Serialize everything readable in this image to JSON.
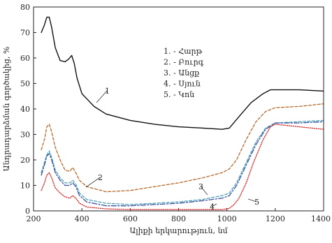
{
  "chart_data": {
    "type": "line",
    "xlabel": "Ալիքի երկարություն, նմ",
    "ylabel": "Անդրադարձման գործակից, %",
    "xlim": [
      200,
      1400
    ],
    "ylim": [
      0,
      80
    ],
    "x_ticks": [
      "200",
      "400",
      "600",
      "800",
      "1000",
      "1200",
      "1400"
    ],
    "y_ticks": [
      "0",
      "10",
      "20",
      "30",
      "40",
      "50",
      "60",
      "70",
      "80"
    ],
    "grid": false,
    "legend_position": "top-center",
    "legend": [
      "1. - Հարթ",
      "2. - Բուրգ",
      "3. - Անցք",
      "4. - Սյուն",
      "5. - Կոն"
    ],
    "series": [
      {
        "label": "1",
        "color": "#111111",
        "style": "solid",
        "x": [
          232,
          245,
          255,
          265,
          275,
          290,
          310,
          330,
          345,
          358,
          368,
          380,
          400,
          450,
          500,
          600,
          700,
          800,
          900,
          980,
          1010,
          1050,
          1100,
          1150,
          1180,
          1200,
          1300,
          1400
        ],
        "y": [
          70,
          73,
          76,
          76,
          72,
          64,
          59,
          58.5,
          59.5,
          61,
          58,
          52,
          46,
          41,
          38,
          35.5,
          34,
          33,
          32.5,
          32,
          32.5,
          37,
          42.5,
          46,
          47.5,
          47.5,
          47.5,
          47
        ]
      },
      {
        "label": "2",
        "color": "#b8692a",
        "style": "dashed",
        "x": [
          232,
          245,
          255,
          265,
          275,
          290,
          310,
          330,
          350,
          362,
          375,
          390,
          420,
          500,
          600,
          700,
          800,
          900,
          980,
          1010,
          1040,
          1080,
          1120,
          1160,
          1200,
          1300,
          1400
        ],
        "y": [
          24,
          28,
          33,
          34,
          31,
          25,
          20,
          16,
          15.5,
          17,
          15,
          12,
          9.5,
          7.5,
          8,
          9.5,
          11,
          13,
          15,
          16.5,
          20,
          28,
          35,
          39,
          40.5,
          41,
          42
        ]
      },
      {
        "label": "3",
        "color": "#4aa3b8",
        "style": "dashed",
        "x": [
          232,
          245,
          255,
          265,
          275,
          290,
          310,
          330,
          350,
          362,
          375,
          390,
          420,
          500,
          600,
          700,
          800,
          900,
          980,
          1010,
          1040,
          1080,
          1120,
          1160,
          1200,
          1300,
          1400
        ],
        "y": [
          15,
          19,
          22,
          23.5,
          21,
          16,
          13,
          11,
          11,
          12,
          10.5,
          7,
          4.5,
          3,
          2.5,
          3,
          3.5,
          4.5,
          6,
          7,
          11,
          19,
          27,
          32.5,
          34.5,
          35,
          35.5
        ]
      },
      {
        "label": "4",
        "color": "#3c4fa0",
        "style": "dashdot",
        "x": [
          232,
          245,
          255,
          265,
          275,
          290,
          310,
          330,
          350,
          362,
          375,
          390,
          420,
          500,
          600,
          700,
          800,
          900,
          980,
          1010,
          1040,
          1080,
          1120,
          1160,
          1200,
          1300,
          1400
        ],
        "y": [
          14,
          18,
          21.5,
          22.5,
          20,
          15,
          12,
          10,
          10,
          11,
          9.5,
          6,
          3.5,
          2,
          2,
          2.5,
          3,
          4,
          5,
          6,
          10,
          18,
          26,
          32,
          34.5,
          34.5,
          35
        ]
      },
      {
        "label": "5",
        "color": "#d92b2b",
        "style": "dotted",
        "x": [
          232,
          245,
          255,
          265,
          275,
          290,
          310,
          330,
          350,
          362,
          375,
          390,
          420,
          500,
          600,
          700,
          800,
          900,
          980,
          1010,
          1030,
          1050,
          1080,
          1110,
          1150,
          1180,
          1200,
          1300,
          1400
        ],
        "y": [
          8,
          11,
          14,
          15,
          13,
          9,
          7,
          5.5,
          5,
          6,
          5,
          3,
          1.5,
          0.8,
          0.5,
          0.5,
          0.5,
          0.5,
          0.5,
          1,
          2.5,
          5,
          11,
          19,
          28,
          33,
          34,
          33,
          32
        ]
      }
    ]
  }
}
